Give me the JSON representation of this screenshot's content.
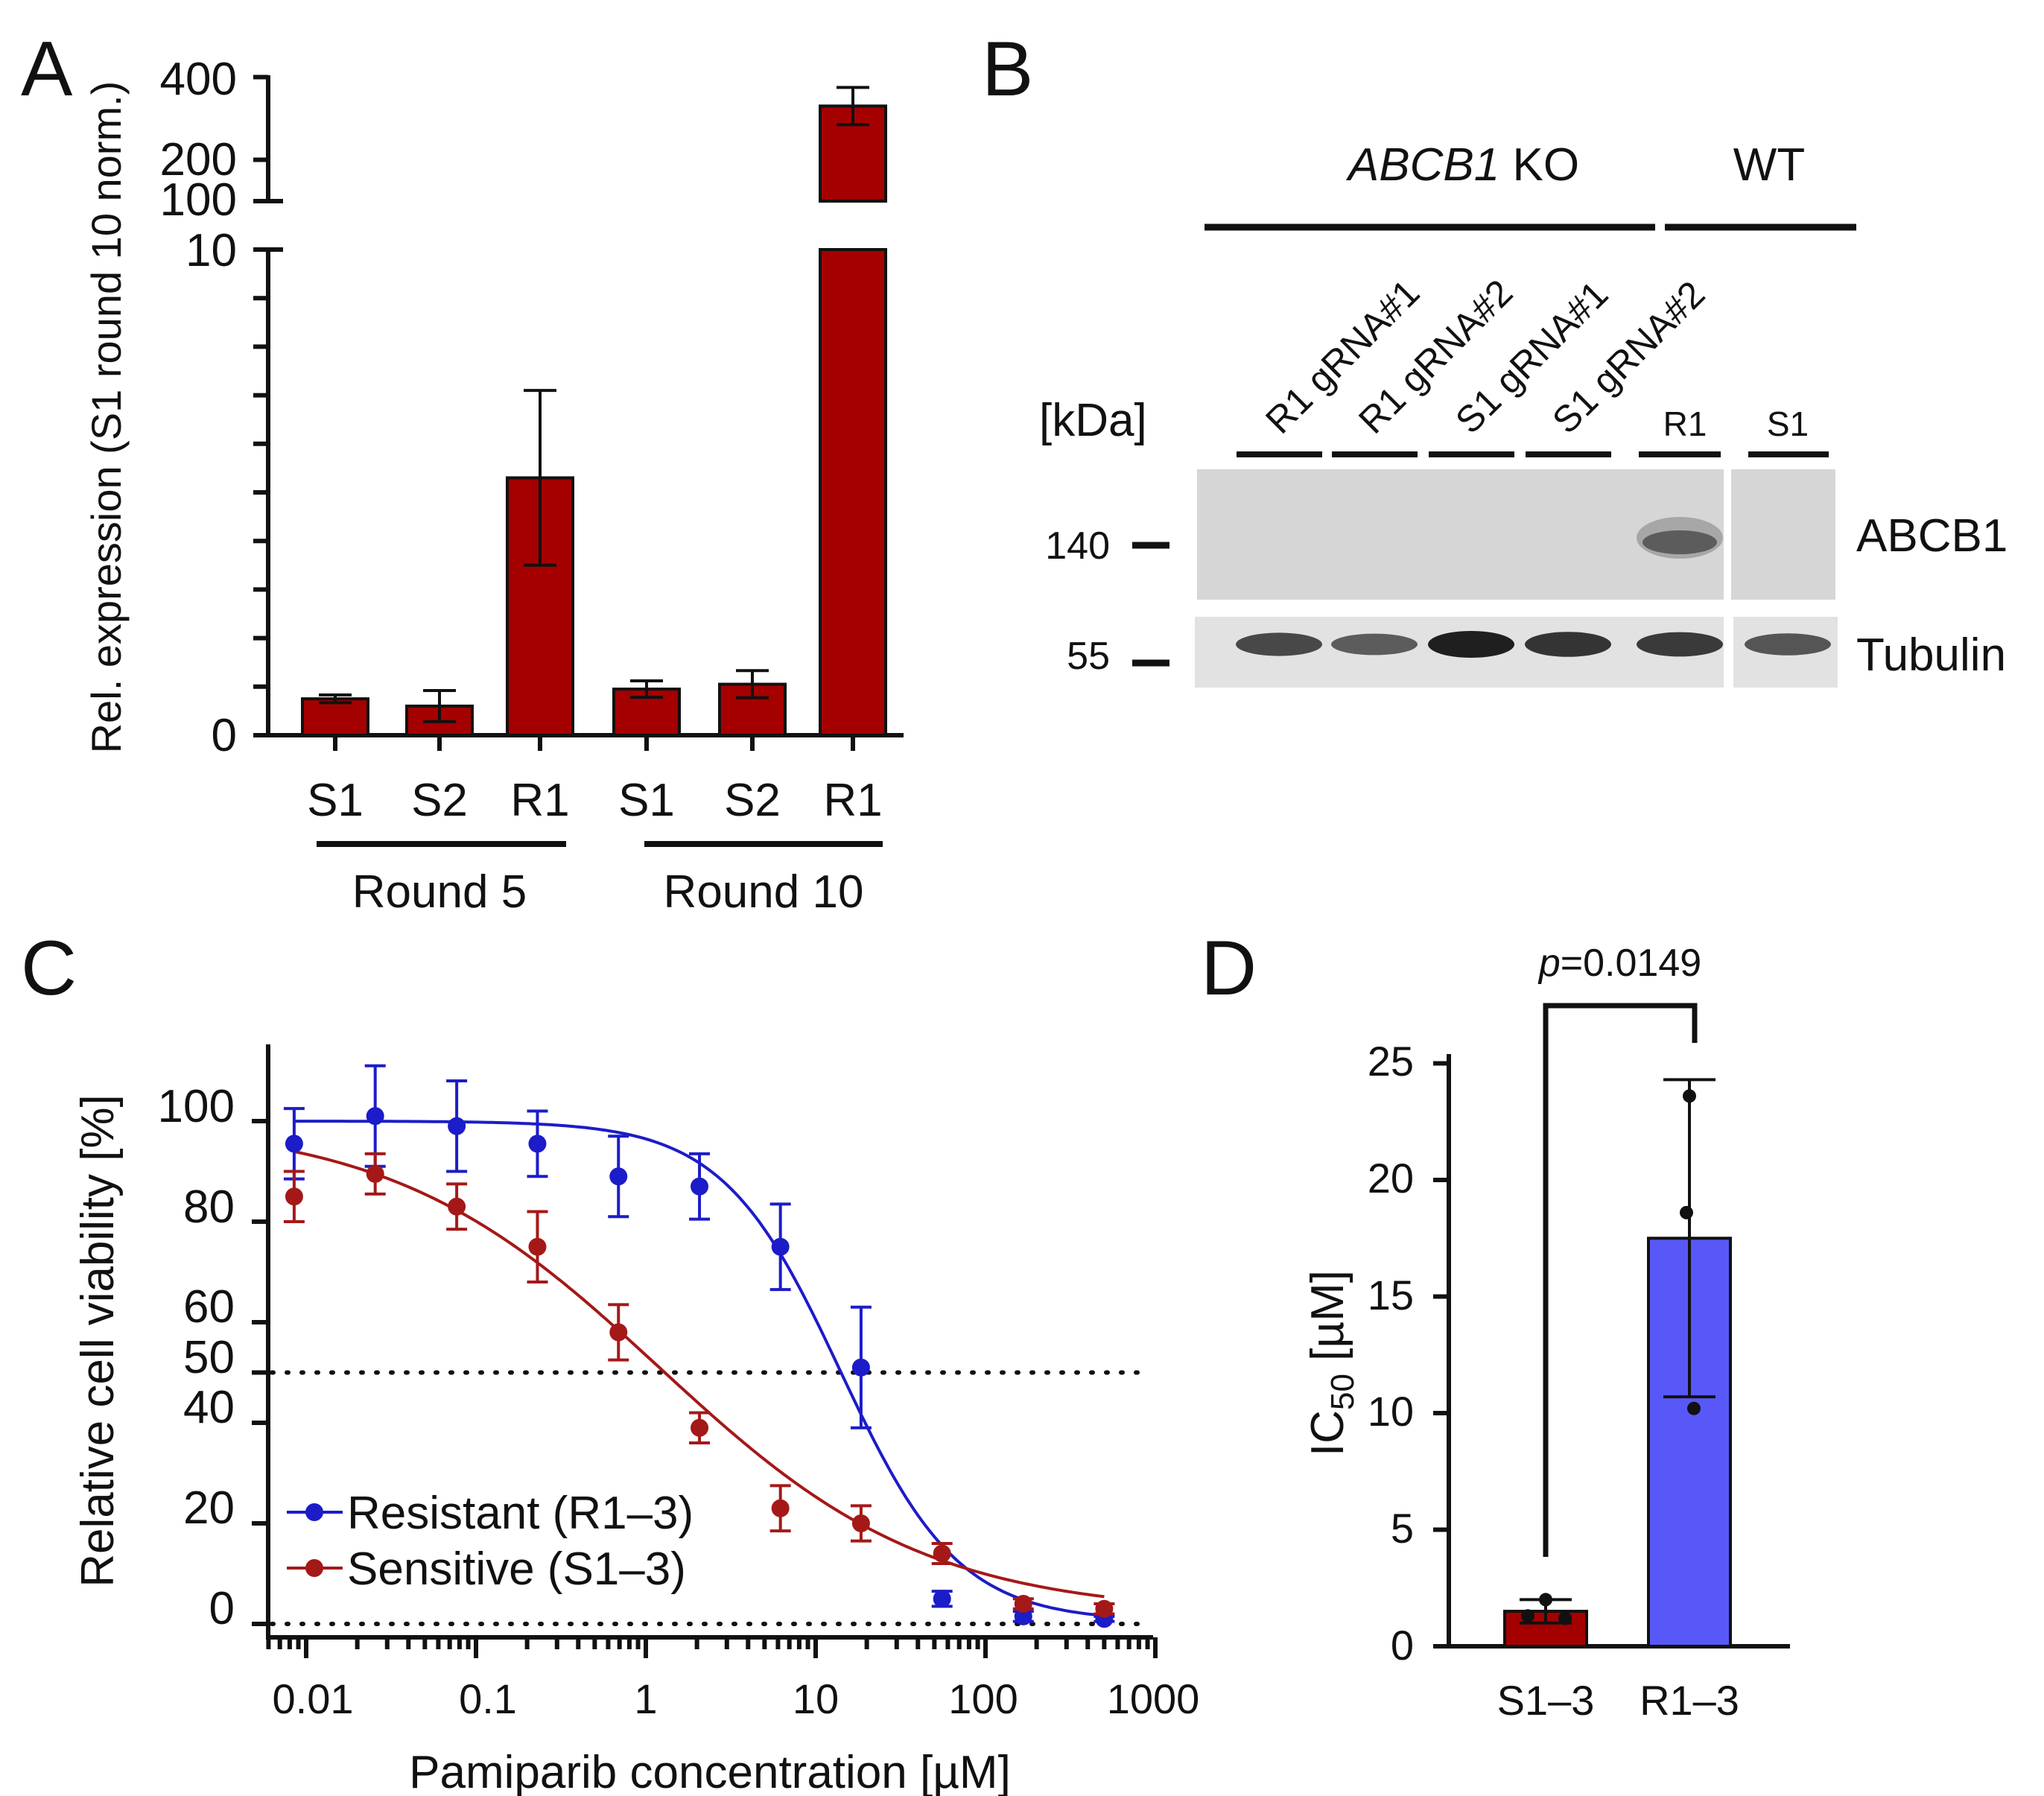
{
  "colors": {
    "dark_red": "#a50000",
    "blue_bar": "#5858f8",
    "blue_line": "#1c1cc8",
    "red_line": "#a51818",
    "blot_bg": "#d6d6d6",
    "axis": "#111111"
  },
  "panels": {
    "A": "A",
    "B": "B",
    "C": "C",
    "D": "D"
  },
  "chart_data": [
    {
      "panel": "A",
      "type": "bar",
      "ylabel": "Rel. expression (S1 round 10 norm.)",
      "y_axis_break": [
        10,
        100
      ],
      "lower_ticks": [
        "0",
        "10"
      ],
      "upper_ticks": [
        "100",
        "200",
        "400"
      ],
      "categories": [
        "S1",
        "S2",
        "R1",
        "S1",
        "S2",
        "R1"
      ],
      "groups": [
        {
          "label": "Round 5",
          "members": [
            0,
            1,
            2
          ]
        },
        {
          "label": "Round 10",
          "members": [
            3,
            4,
            5
          ]
        }
      ],
      "values": [
        0.75,
        0.6,
        5.3,
        0.95,
        1.05,
        330
      ],
      "errors": [
        0.08,
        0.32,
        1.8,
        0.17,
        0.28,
        45
      ]
    },
    {
      "panel": "B",
      "type": "western_blot",
      "header_ko": "ABCB1",
      "header_ko_suffix": " KO",
      "header_wt": "WT",
      "unit_label": "[kDa]",
      "lanes": [
        "R1 gRNA#1",
        "R1 gRNA#2",
        "S1 gRNA#1",
        "S1 gRNA#2",
        "R1",
        "S1"
      ],
      "markers": [
        "140",
        "55"
      ],
      "bands": [
        "ABCB1",
        "Tubulin"
      ],
      "abcb1_intensity": [
        0,
        0,
        0,
        0,
        0.8,
        0
      ],
      "tubulin_intensity": [
        0.7,
        0.55,
        1.0,
        0.85,
        0.8,
        0.6
      ]
    },
    {
      "panel": "C",
      "type": "line",
      "xscale": "log",
      "xlabel": "Pamiparib concentration [µM]",
      "ylabel": "Relative cell viability [%]",
      "xlim": [
        0.006,
        1000
      ],
      "ylim": [
        -5,
        112
      ],
      "x_ticks": [
        "0.01",
        "0.1",
        "1",
        "10",
        "100",
        "1000"
      ],
      "y_ticks": [
        "0",
        "20",
        "40",
        "50",
        "60",
        "80",
        "100"
      ],
      "reference_lines": [
        0,
        50
      ],
      "x": [
        0.0085,
        0.0255,
        0.077,
        0.23,
        0.69,
        2.07,
        6.2,
        18.5,
        55.5,
        167,
        500
      ],
      "series": [
        {
          "name": "Resistant (R1–3)",
          "values": [
            95.5,
            101,
            99,
            95.5,
            89,
            87,
            75,
            51,
            5,
            1.5,
            1
          ],
          "errors": [
            7,
            10,
            9,
            6.5,
            8,
            6.5,
            8.5,
            12,
            1.5,
            1,
            0.5
          ],
          "fit": {
            "top": 100,
            "bottom": 0.5,
            "ic50": 14,
            "hill": 1.25
          }
        },
        {
          "name": "Sensitive (S1–3)",
          "values": [
            85,
            89.5,
            83,
            75,
            58,
            39,
            23,
            20,
            14,
            4,
            3
          ],
          "errors": [
            5,
            4,
            4.5,
            7,
            5.5,
            3,
            4.5,
            3.5,
            2,
            1,
            1
          ],
          "fit": {
            "top": 100,
            "bottom": 2,
            "ic50": 1.2,
            "hill": 0.55
          }
        }
      ]
    },
    {
      "panel": "D",
      "type": "bar",
      "ylabel_main": "IC",
      "ylabel_sub": "50",
      "ylabel_unit": " [µM]",
      "categories": [
        "S1–3",
        "R1–3"
      ],
      "values": [
        1.5,
        17.5
      ],
      "errors": [
        0.5,
        6.8
      ],
      "points": [
        [
          2.0,
          1.3,
          1.2
        ],
        [
          23.6,
          18.6,
          10.2
        ]
      ],
      "ylim": [
        0,
        26
      ],
      "y_ticks": [
        "0",
        "5",
        "10",
        "15",
        "20",
        "25"
      ],
      "p_value_label": "p",
      "p_value": "=0.0149"
    }
  ]
}
